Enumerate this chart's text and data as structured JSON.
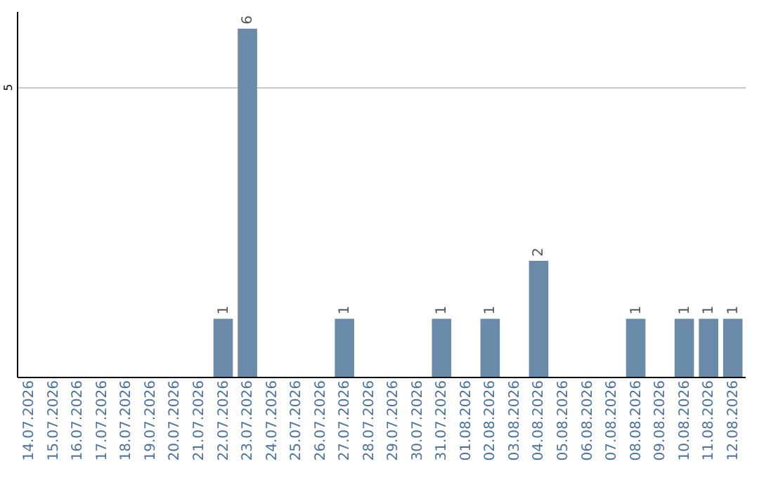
{
  "chart_data": {
    "type": "bar",
    "categories": [
      "14.07.2026",
      "15.07.2026",
      "16.07.2026",
      "17.07.2026",
      "18.07.2026",
      "19.07.2026",
      "20.07.2026",
      "21.07.2026",
      "22.07.2026",
      "23.07.2026",
      "24.07.2026",
      "25.07.2026",
      "26.07.2026",
      "27.07.2026",
      "28.07.2026",
      "29.07.2026",
      "30.07.2026",
      "31.07.2026",
      "01.08.2026",
      "02.08.2026",
      "03.08.2026",
      "04.08.2026",
      "05.08.2026",
      "06.08.2026",
      "07.08.2026",
      "08.08.2026",
      "09.08.2026",
      "10.08.2026",
      "11.08.2026",
      "12.08.2026"
    ],
    "values": [
      0,
      0,
      0,
      0,
      0,
      0,
      0,
      0,
      1,
      6,
      0,
      0,
      0,
      1,
      0,
      0,
      0,
      1,
      0,
      1,
      0,
      2,
      0,
      0,
      0,
      1,
      0,
      1,
      1,
      1
    ],
    "value_labels": [
      null,
      null,
      null,
      null,
      null,
      null,
      null,
      null,
      "1",
      "6",
      null,
      null,
      null,
      "1",
      null,
      null,
      null,
      "1",
      null,
      "1",
      null,
      "2",
      null,
      null,
      null,
      "1",
      null,
      "1",
      "1",
      "1"
    ],
    "color": "#6a8aaa",
    "ylim": [
      0,
      6.3
    ],
    "yticks": [
      5
    ],
    "grid": "y"
  }
}
